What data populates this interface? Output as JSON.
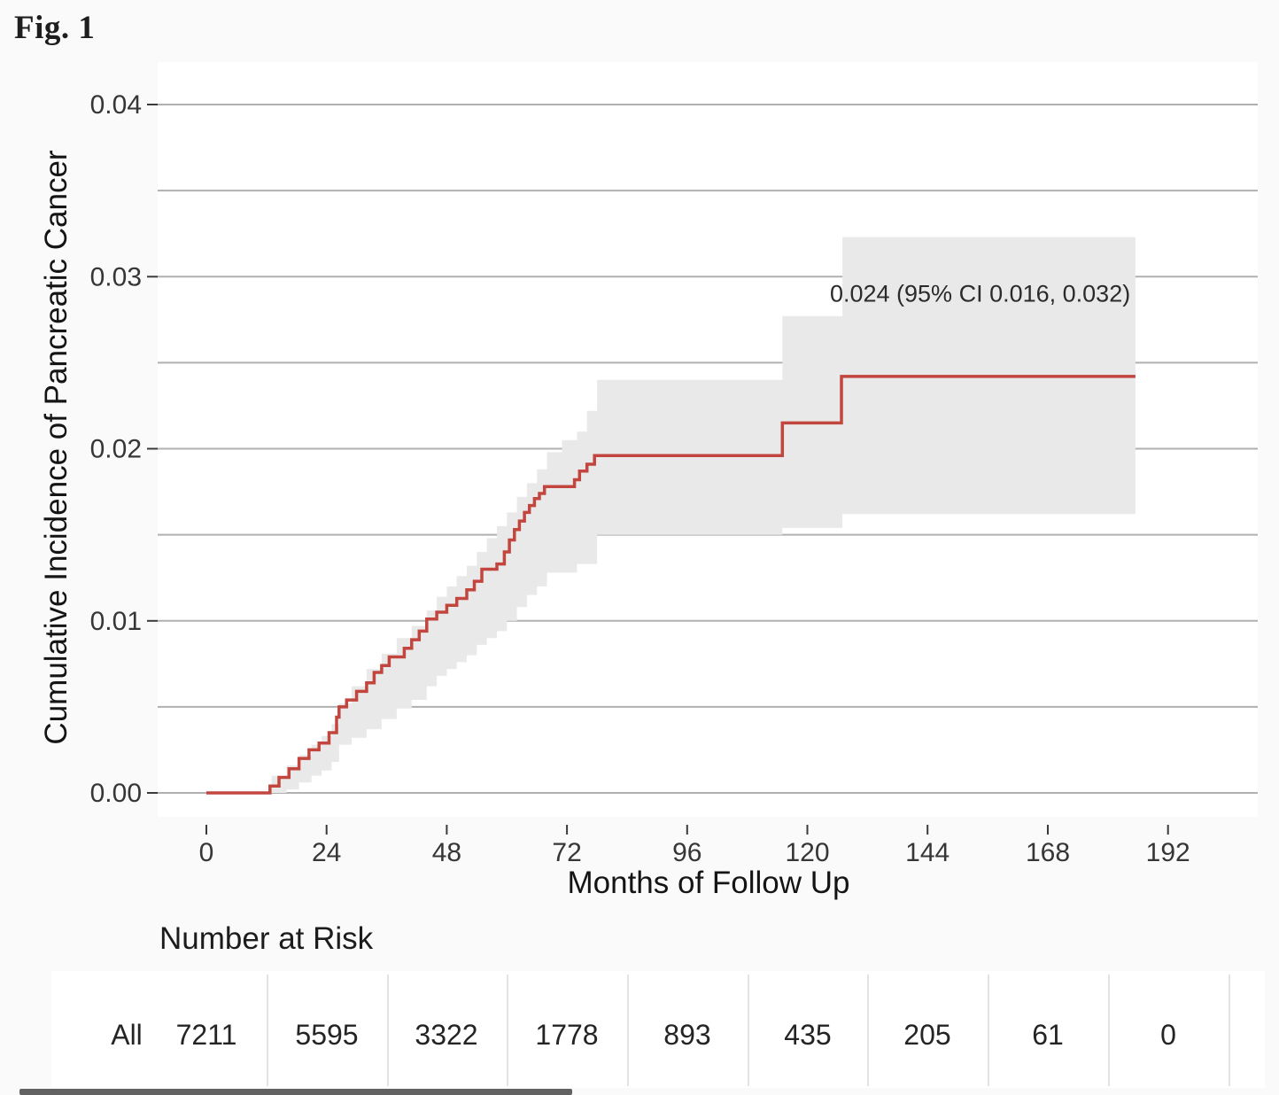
{
  "figure_label": "Fig. 1",
  "colors": {
    "curve_red": "#c2453e",
    "ci_band_gray": "#e9e9e9",
    "gridline_gray": "#b0b0b0",
    "background": "#fafafa",
    "panel_white": "#ffffff"
  },
  "chart_data": {
    "type": "line",
    "style": "kaplan-meier-step",
    "title": "",
    "xlabel": "Months of Follow Up",
    "ylabel": "Cumulative Incidence of Pancreatic Cancer",
    "xlim": [
      -10,
      210
    ],
    "ylim": [
      0,
      0.04
    ],
    "x_ticks": [
      0,
      24,
      48,
      72,
      96,
      120,
      144,
      168,
      192
    ],
    "y_ticks": [
      {
        "label": "0.00",
        "value": 0.0
      },
      {
        "label": "0.01",
        "value": 0.01
      },
      {
        "label": "0.02",
        "value": 0.02
      },
      {
        "label": "0.03",
        "value": 0.03
      },
      {
        "label": "0.04",
        "value": 0.04
      }
    ],
    "y_gridlines": [
      0,
      0.005,
      0.01,
      0.015,
      0.02,
      0.025,
      0.03,
      0.035,
      0.04
    ],
    "grid": "horizontal-only",
    "legend": "none",
    "annotation": {
      "text": "0.024 (95% CI 0.016, 0.032)",
      "x_month": 154.5,
      "y_value": 0.029
    },
    "final_estimate": {
      "value": 0.024,
      "ci_lower": 0.016,
      "ci_upper": 0.032
    },
    "series": [
      {
        "name": "All",
        "color": "#c2453e",
        "steps": [
          [
            0,
            0
          ],
          [
            12.7,
            0.0004
          ],
          [
            14.5,
            0.0009
          ],
          [
            16.5,
            0.0014
          ],
          [
            18.5,
            0.002
          ],
          [
            20.5,
            0.0025
          ],
          [
            22.5,
            0.0029
          ],
          [
            24.5,
            0.0035
          ],
          [
            26,
            0.0044
          ],
          [
            26.5,
            0.005
          ],
          [
            28,
            0.0054
          ],
          [
            30,
            0.0059
          ],
          [
            32,
            0.0064
          ],
          [
            33.5,
            0.007
          ],
          [
            35,
            0.0074
          ],
          [
            36.5,
            0.0079
          ],
          [
            39.5,
            0.0084
          ],
          [
            41,
            0.0089
          ],
          [
            42.5,
            0.0094
          ],
          [
            44,
            0.0101
          ],
          [
            46,
            0.0105
          ],
          [
            48,
            0.0109
          ],
          [
            50,
            0.0113
          ],
          [
            52,
            0.0118
          ],
          [
            53.5,
            0.0123
          ],
          [
            55,
            0.013
          ],
          [
            58,
            0.0133
          ],
          [
            59.5,
            0.014
          ],
          [
            60.5,
            0.0147
          ],
          [
            61.5,
            0.0153
          ],
          [
            62.5,
            0.0158
          ],
          [
            63.5,
            0.0163
          ],
          [
            64.5,
            0.0167
          ],
          [
            65.5,
            0.0171
          ],
          [
            66.5,
            0.0174
          ],
          [
            67.5,
            0.0178
          ],
          [
            73.5,
            0.0182
          ],
          [
            74.5,
            0.0187
          ],
          [
            76,
            0.0191
          ],
          [
            77.5,
            0.0196
          ],
          [
            115,
            0.0215
          ],
          [
            126.8,
            0.0242
          ],
          [
            185.5,
            0.0242
          ]
        ]
      }
    ],
    "ci_band": {
      "color": "#e9e9e9",
      "lower": [
        [
          13,
          0
        ],
        [
          16,
          0.0002
        ],
        [
          18.5,
          0.0006
        ],
        [
          21,
          0.001
        ],
        [
          23,
          0.0013
        ],
        [
          25,
          0.0018
        ],
        [
          26.5,
          0.0028
        ],
        [
          29,
          0.0032
        ],
        [
          32,
          0.0037
        ],
        [
          35,
          0.0043
        ],
        [
          38,
          0.0049
        ],
        [
          41,
          0.0054
        ],
        [
          44,
          0.0062
        ],
        [
          46,
          0.0068
        ],
        [
          48,
          0.0072
        ],
        [
          50,
          0.0076
        ],
        [
          52,
          0.008
        ],
        [
          54,
          0.0086
        ],
        [
          56,
          0.009
        ],
        [
          58,
          0.0094
        ],
        [
          60,
          0.01
        ],
        [
          62,
          0.0108
        ],
        [
          64,
          0.0115
        ],
        [
          66,
          0.012
        ],
        [
          68,
          0.0128
        ],
        [
          74,
          0.0133
        ],
        [
          78,
          0.015
        ],
        [
          115,
          0.0154
        ],
        [
          127,
          0.0162
        ],
        [
          185.5,
          0.0162
        ]
      ],
      "upper": [
        [
          13,
          0.001
        ],
        [
          16,
          0.0016
        ],
        [
          18.5,
          0.0022
        ],
        [
          21,
          0.0028
        ],
        [
          23,
          0.0033
        ],
        [
          25,
          0.004
        ],
        [
          26.5,
          0.0052
        ],
        [
          29,
          0.0062
        ],
        [
          32,
          0.0072
        ],
        [
          35,
          0.0081
        ],
        [
          38,
          0.009
        ],
        [
          41,
          0.0097
        ],
        [
          44,
          0.0106
        ],
        [
          46,
          0.0114
        ],
        [
          48,
          0.012
        ],
        [
          50,
          0.0126
        ],
        [
          52,
          0.0132
        ],
        [
          54,
          0.014
        ],
        [
          56,
          0.0148
        ],
        [
          58,
          0.0155
        ],
        [
          60,
          0.0163
        ],
        [
          62,
          0.0172
        ],
        [
          64,
          0.018
        ],
        [
          66,
          0.0188
        ],
        [
          68,
          0.0198
        ],
        [
          71,
          0.0205
        ],
        [
          74,
          0.021
        ],
        [
          76,
          0.0222
        ],
        [
          78,
          0.024
        ],
        [
          115,
          0.0277
        ],
        [
          127,
          0.0323
        ],
        [
          185.5,
          0.0323
        ]
      ]
    }
  },
  "risk_table": {
    "title": "Number at Risk",
    "columns_months": [
      0,
      24,
      48,
      72,
      96,
      120,
      144,
      168,
      192
    ],
    "rows": [
      {
        "label": "All",
        "values": [
          "7211",
          "5595",
          "3322",
          "1778",
          "893",
          "435",
          "205",
          "61",
          "0"
        ]
      }
    ]
  }
}
